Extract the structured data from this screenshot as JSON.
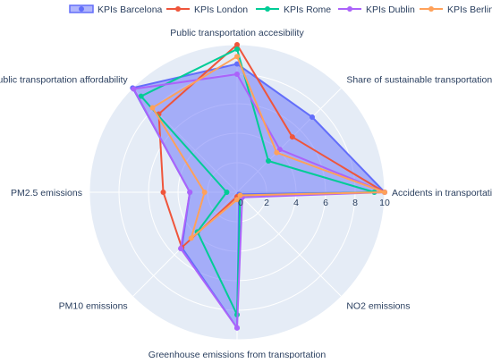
{
  "chart_data": {
    "type": "radar",
    "categories": [
      "Accidents in transportation",
      "Share of sustainable transportation",
      "Public transportation accesibility",
      "Public transportation affordability",
      "PM2.5 emissions",
      "PM10 emissions",
      "Greenhouse emissions from transportation",
      "NO2 emissions"
    ],
    "radial_range": [
      0,
      10
    ],
    "radial_ticks": [
      "0",
      "2",
      "4",
      "6",
      "8",
      "10"
    ],
    "radial_tick_values": [
      0,
      2,
      4,
      6,
      8,
      10
    ],
    "legend_position": "top",
    "series": [
      {
        "name": "KPIs Barcelona",
        "color": "#636efa",
        "fill": true,
        "values": [
          10.0,
          7.2,
          8.7,
          10.0,
          3.2,
          5.3,
          9.2,
          0.2
        ]
      },
      {
        "name": "KPIs London",
        "color": "#ef553b",
        "fill": false,
        "values": [
          10.0,
          5.3,
          10.0,
          7.5,
          5.0,
          5.3,
          0.3,
          0.3
        ]
      },
      {
        "name": "KPIs Rome",
        "color": "#00cc96",
        "fill": false,
        "values": [
          9.3,
          3.0,
          9.7,
          9.2,
          0.7,
          3.8,
          8.3,
          0.3
        ]
      },
      {
        "name": "KPIs Dublin",
        "color": "#ab63fa",
        "fill": false,
        "values": [
          10.0,
          4.1,
          8.0,
          9.9,
          3.2,
          5.4,
          9.2,
          0.5
        ]
      },
      {
        "name": "KPIs Berlin",
        "color": "#ffa15a",
        "fill": false,
        "values": [
          10.0,
          3.8,
          9.2,
          8.1,
          2.2,
          4.4,
          0.5,
          0.3
        ]
      }
    ]
  }
}
